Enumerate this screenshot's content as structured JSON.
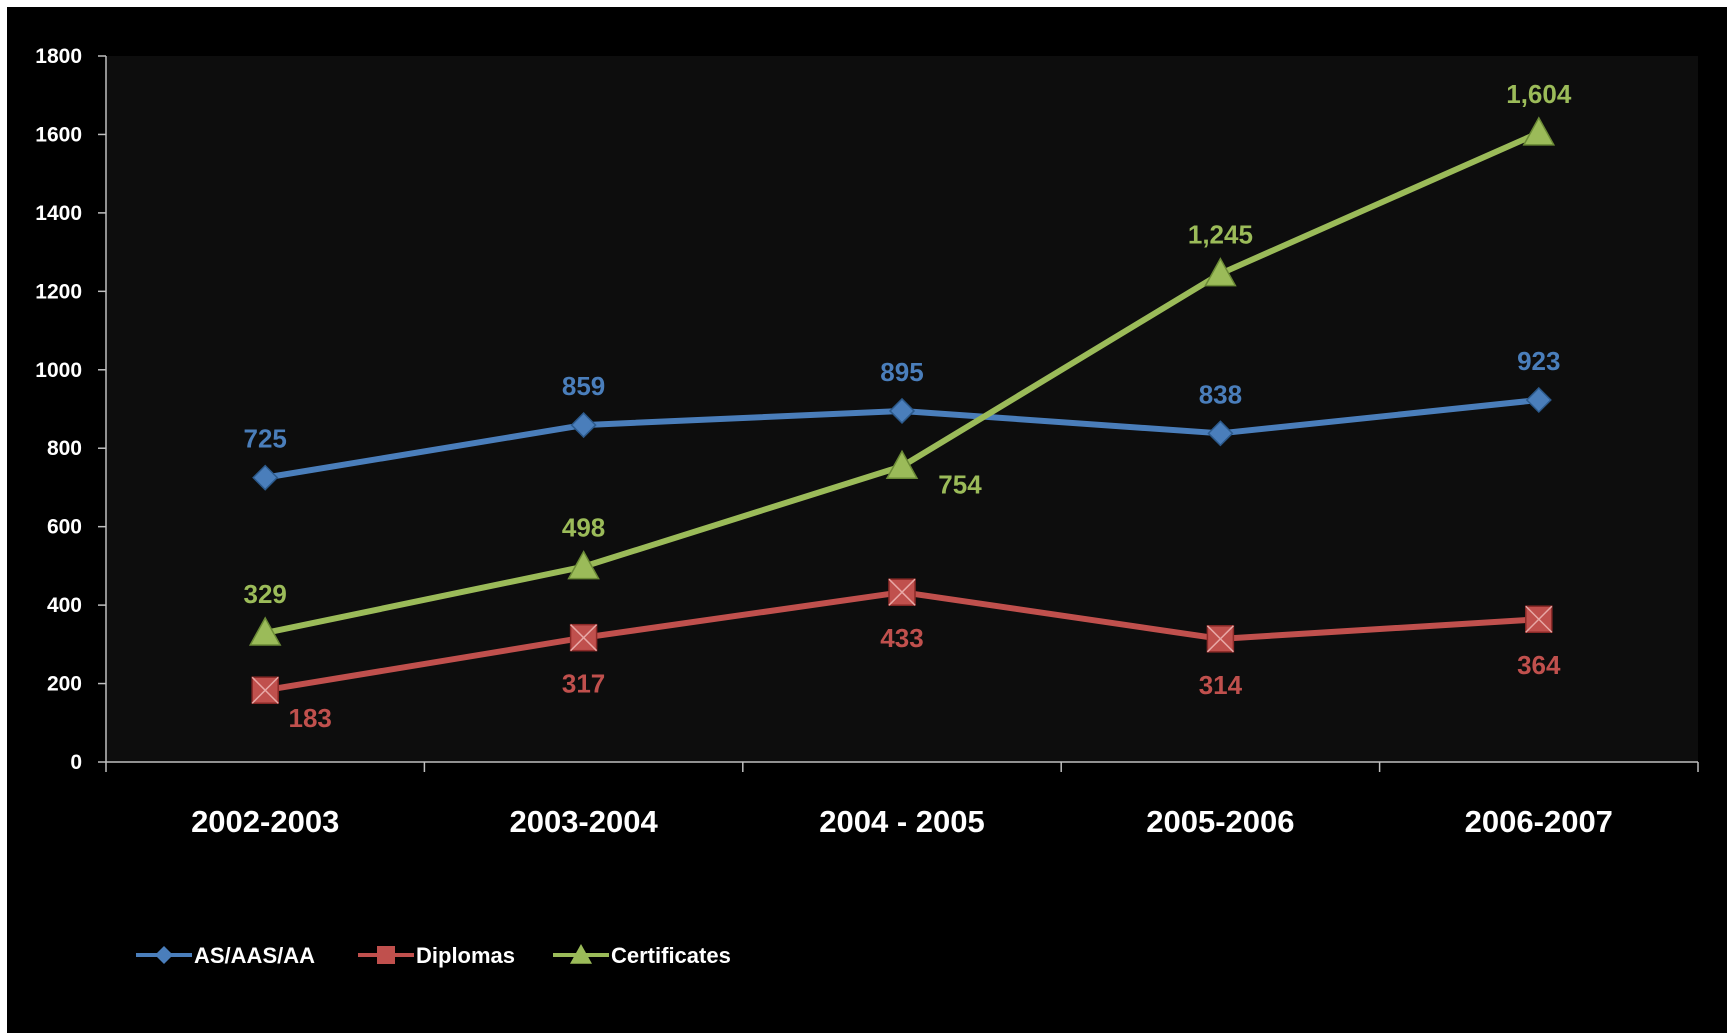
{
  "chart_data": {
    "type": "line",
    "title": "",
    "xlabel": "",
    "ylabel": "",
    "categories": [
      "2002-2003",
      "2003-2004",
      "2004 - 2005",
      "2005-2006",
      "2006-2007"
    ],
    "ylim": [
      0,
      1800
    ],
    "yticks": [
      0,
      200,
      400,
      600,
      800,
      1000,
      1200,
      1400,
      1600,
      1800
    ],
    "ytick_labels": [
      "0",
      "200",
      "400",
      "600",
      "800",
      "1000",
      "1200",
      "1400",
      "1600",
      "1800"
    ],
    "grid": false,
    "legend_position": "bottom-left",
    "series": [
      {
        "name": "AS/AAS/AA",
        "marker": "diamond",
        "color": "#4a7ebb",
        "values": [
          725,
          859,
          895,
          838,
          923
        ],
        "labels": [
          "725",
          "859",
          "895",
          "838",
          "923"
        ]
      },
      {
        "name": "Diplomas",
        "marker": "square",
        "color": "#c0504d",
        "values": [
          183,
          317,
          433,
          314,
          364
        ],
        "labels": [
          "183",
          "317",
          "433",
          "314",
          "364"
        ]
      },
      {
        "name": "Certificates",
        "marker": "triangle",
        "color": "#9bbb59",
        "values": [
          329,
          498,
          754,
          1245,
          1604
        ],
        "labels": [
          "329",
          "498",
          "754",
          "1,245",
          "1,604"
        ]
      }
    ]
  },
  "colors": {
    "background": "#000000",
    "plot_area": "#0d0d0d",
    "axis": "#bfbfbf",
    "text": "#ffffff"
  }
}
